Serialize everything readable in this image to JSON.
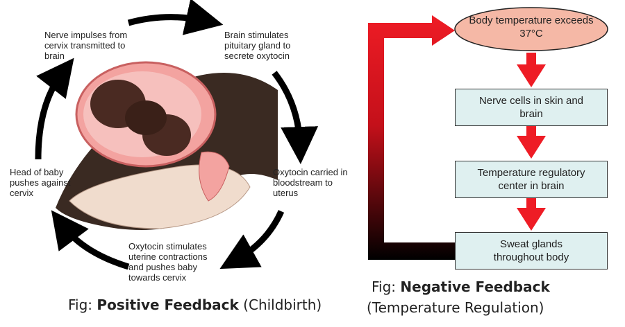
{
  "positive": {
    "labels": [
      "Nerve impulses from cervix transmitted to brain",
      "Brain stimulates pituitary gland to secrete oxytocin",
      "Oxytocin carried in bloodstream to uterus",
      "Oxytocin stimulates uterine contractions and pushes baby towards cervix",
      "Head of baby pushes against cervix"
    ],
    "caption_prefix": "Fig: ",
    "caption_bold": "Positive Feedback",
    "caption_suffix": " (Childbirth)"
  },
  "negative": {
    "steps": [
      "Body temperature exceeds 37°C",
      "Nerve cells in skin and brain",
      "Temperature regulatory center in brain",
      "Sweat glands throughout body"
    ],
    "caption_prefix": "Fig: ",
    "caption_bold": "Negative Feedback",
    "caption_line2": "(Temperature Regulation)"
  },
  "colors": {
    "arrow_red": "#ee1c25",
    "ellipse": "#f5b8a6",
    "box": "#dff0f0"
  }
}
